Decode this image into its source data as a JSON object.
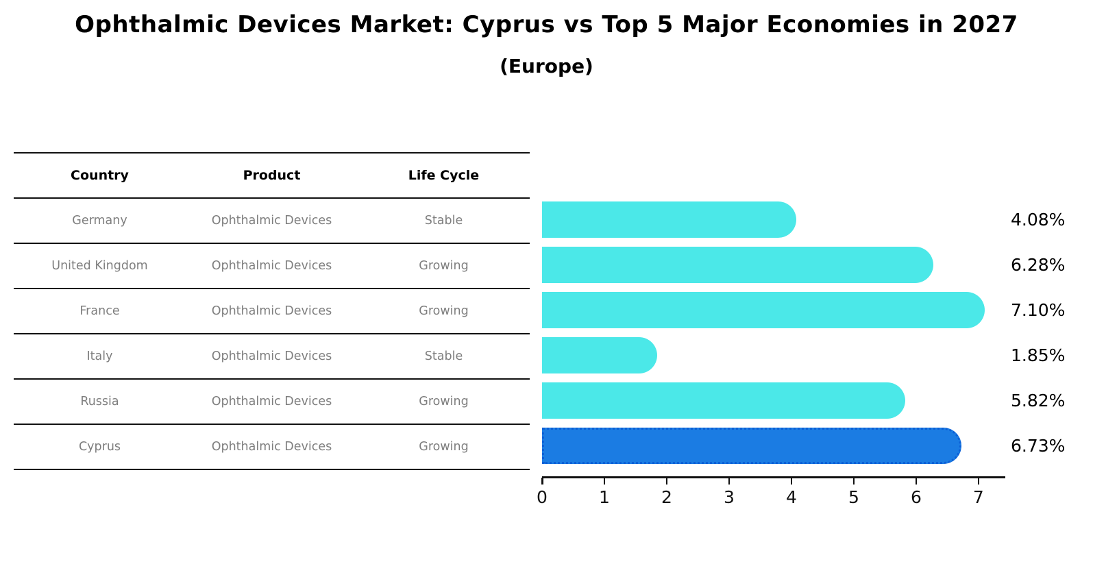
{
  "header": {
    "title": "Ophthalmic Devices Market: Cyprus vs Top 5 Major Economies in 2027",
    "subtitle": "(Europe)"
  },
  "table": {
    "columns": [
      "Country",
      "Product",
      "Life Cycle"
    ],
    "rows": [
      {
        "country": "Germany",
        "product": "Ophthalmic Devices",
        "life_cycle": "Stable",
        "highlight": false
      },
      {
        "country": "United Kingdom",
        "product": "Ophthalmic Devices",
        "life_cycle": "Growing",
        "highlight": false
      },
      {
        "country": "France",
        "product": "Ophthalmic Devices",
        "life_cycle": "Growing",
        "highlight": false
      },
      {
        "country": "Italy",
        "product": "Ophthalmic Devices",
        "life_cycle": "Stable",
        "highlight": false
      },
      {
        "country": "Russia",
        "product": "Ophthalmic Devices",
        "life_cycle": "Growing",
        "highlight": false
      },
      {
        "country": "Cyprus",
        "product": "Ophthalmic Devices",
        "life_cycle": "Growing",
        "highlight": true
      }
    ]
  },
  "chart_data": {
    "type": "bar",
    "orientation": "horizontal",
    "title": "Ophthalmic Devices Market: Cyprus vs Top 5 Major Economies in 2027 (Europe)",
    "categories": [
      "Germany",
      "United Kingdom",
      "France",
      "Italy",
      "Russia",
      "Cyprus"
    ],
    "values": [
      4.08,
      6.28,
      7.1,
      1.85,
      5.82,
      6.73
    ],
    "value_labels": [
      "4.08%",
      "6.28%",
      "7.10%",
      "1.85%",
      "5.82%",
      "6.73%"
    ],
    "x_ticks": [
      "0",
      "1",
      "2",
      "3",
      "4",
      "5",
      "6",
      "7"
    ],
    "xlim": [
      0,
      7.43
    ],
    "grid": false,
    "legend": "none",
    "bar_color": "#4BE8E8",
    "highlight_index": 5,
    "highlight_bar_color": "#1B7CE3",
    "highlight_border_color": "#0C5FD6"
  },
  "colors": {
    "highlight_text": "#2E7BB8",
    "row_text": "#7E7E7E",
    "header_text": "#000000",
    "axis": "#111111"
  }
}
